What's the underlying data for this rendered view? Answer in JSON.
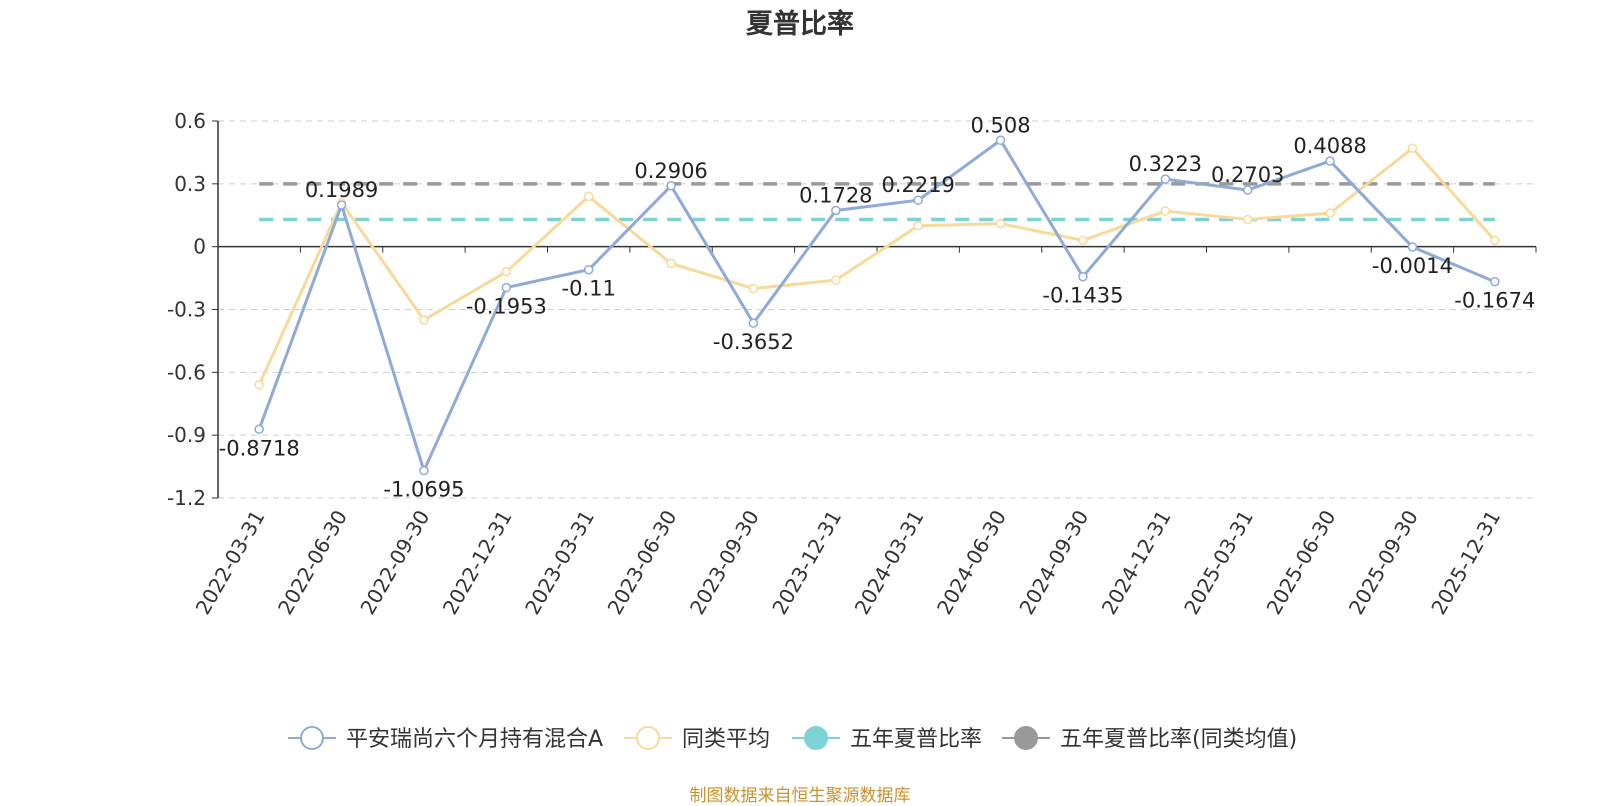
{
  "chart_data": {
    "type": "line",
    "title": "夏普比率",
    "categories": [
      "2022-03-31",
      "2022-06-30",
      "2022-09-30",
      "2022-12-31",
      "2023-03-31",
      "2023-06-30",
      "2023-09-30",
      "2023-12-31",
      "2024-03-31",
      "2024-06-30",
      "2024-09-30",
      "2024-12-31",
      "2025-03-31",
      "2025-06-30",
      "2025-09-30",
      "2025-12-31"
    ],
    "ylim": [
      -1.2,
      0.6
    ],
    "yticks": [
      "0.6",
      "0.3",
      "0",
      "-0.3",
      "-0.6",
      "-0.9",
      "-1.2"
    ],
    "grid": true,
    "legend_position": "bottom",
    "series": [
      {
        "name": "平安瑞尚六个月持有混合A",
        "color": "#8eaad8",
        "values": [
          -0.8718,
          0.1989,
          -1.0695,
          -0.1953,
          -0.11,
          0.2906,
          -0.3652,
          0.1728,
          0.2219,
          0.508,
          -0.1435,
          0.3223,
          0.2703,
          0.4088,
          -0.0014,
          -0.1674
        ],
        "labels": [
          "-0.8718",
          "0.1989",
          "-1.0695",
          "-0.1953",
          "-0.11",
          "0.2906",
          "-0.3652",
          "0.1728",
          "0.2219",
          "0.508",
          "-0.1435",
          "0.3223",
          "0.2703",
          "0.4088",
          "-0.0014",
          "-0.1674"
        ]
      },
      {
        "name": "同类平均",
        "color": "#f9d99a",
        "values": [
          -0.66,
          0.21,
          -0.35,
          -0.12,
          0.24,
          -0.08,
          -0.2,
          -0.16,
          0.1,
          0.11,
          0.03,
          0.17,
          0.13,
          0.16,
          0.47,
          0.03
        ]
      },
      {
        "name": "五年夏普比率",
        "color": "#7dd3d3",
        "constant": 0.13
      },
      {
        "name": "五年夏普比率(同类均值)",
        "color": "#999999",
        "constant": 0.3
      }
    ]
  },
  "source_note": "制图数据来自恒生聚源数据库"
}
